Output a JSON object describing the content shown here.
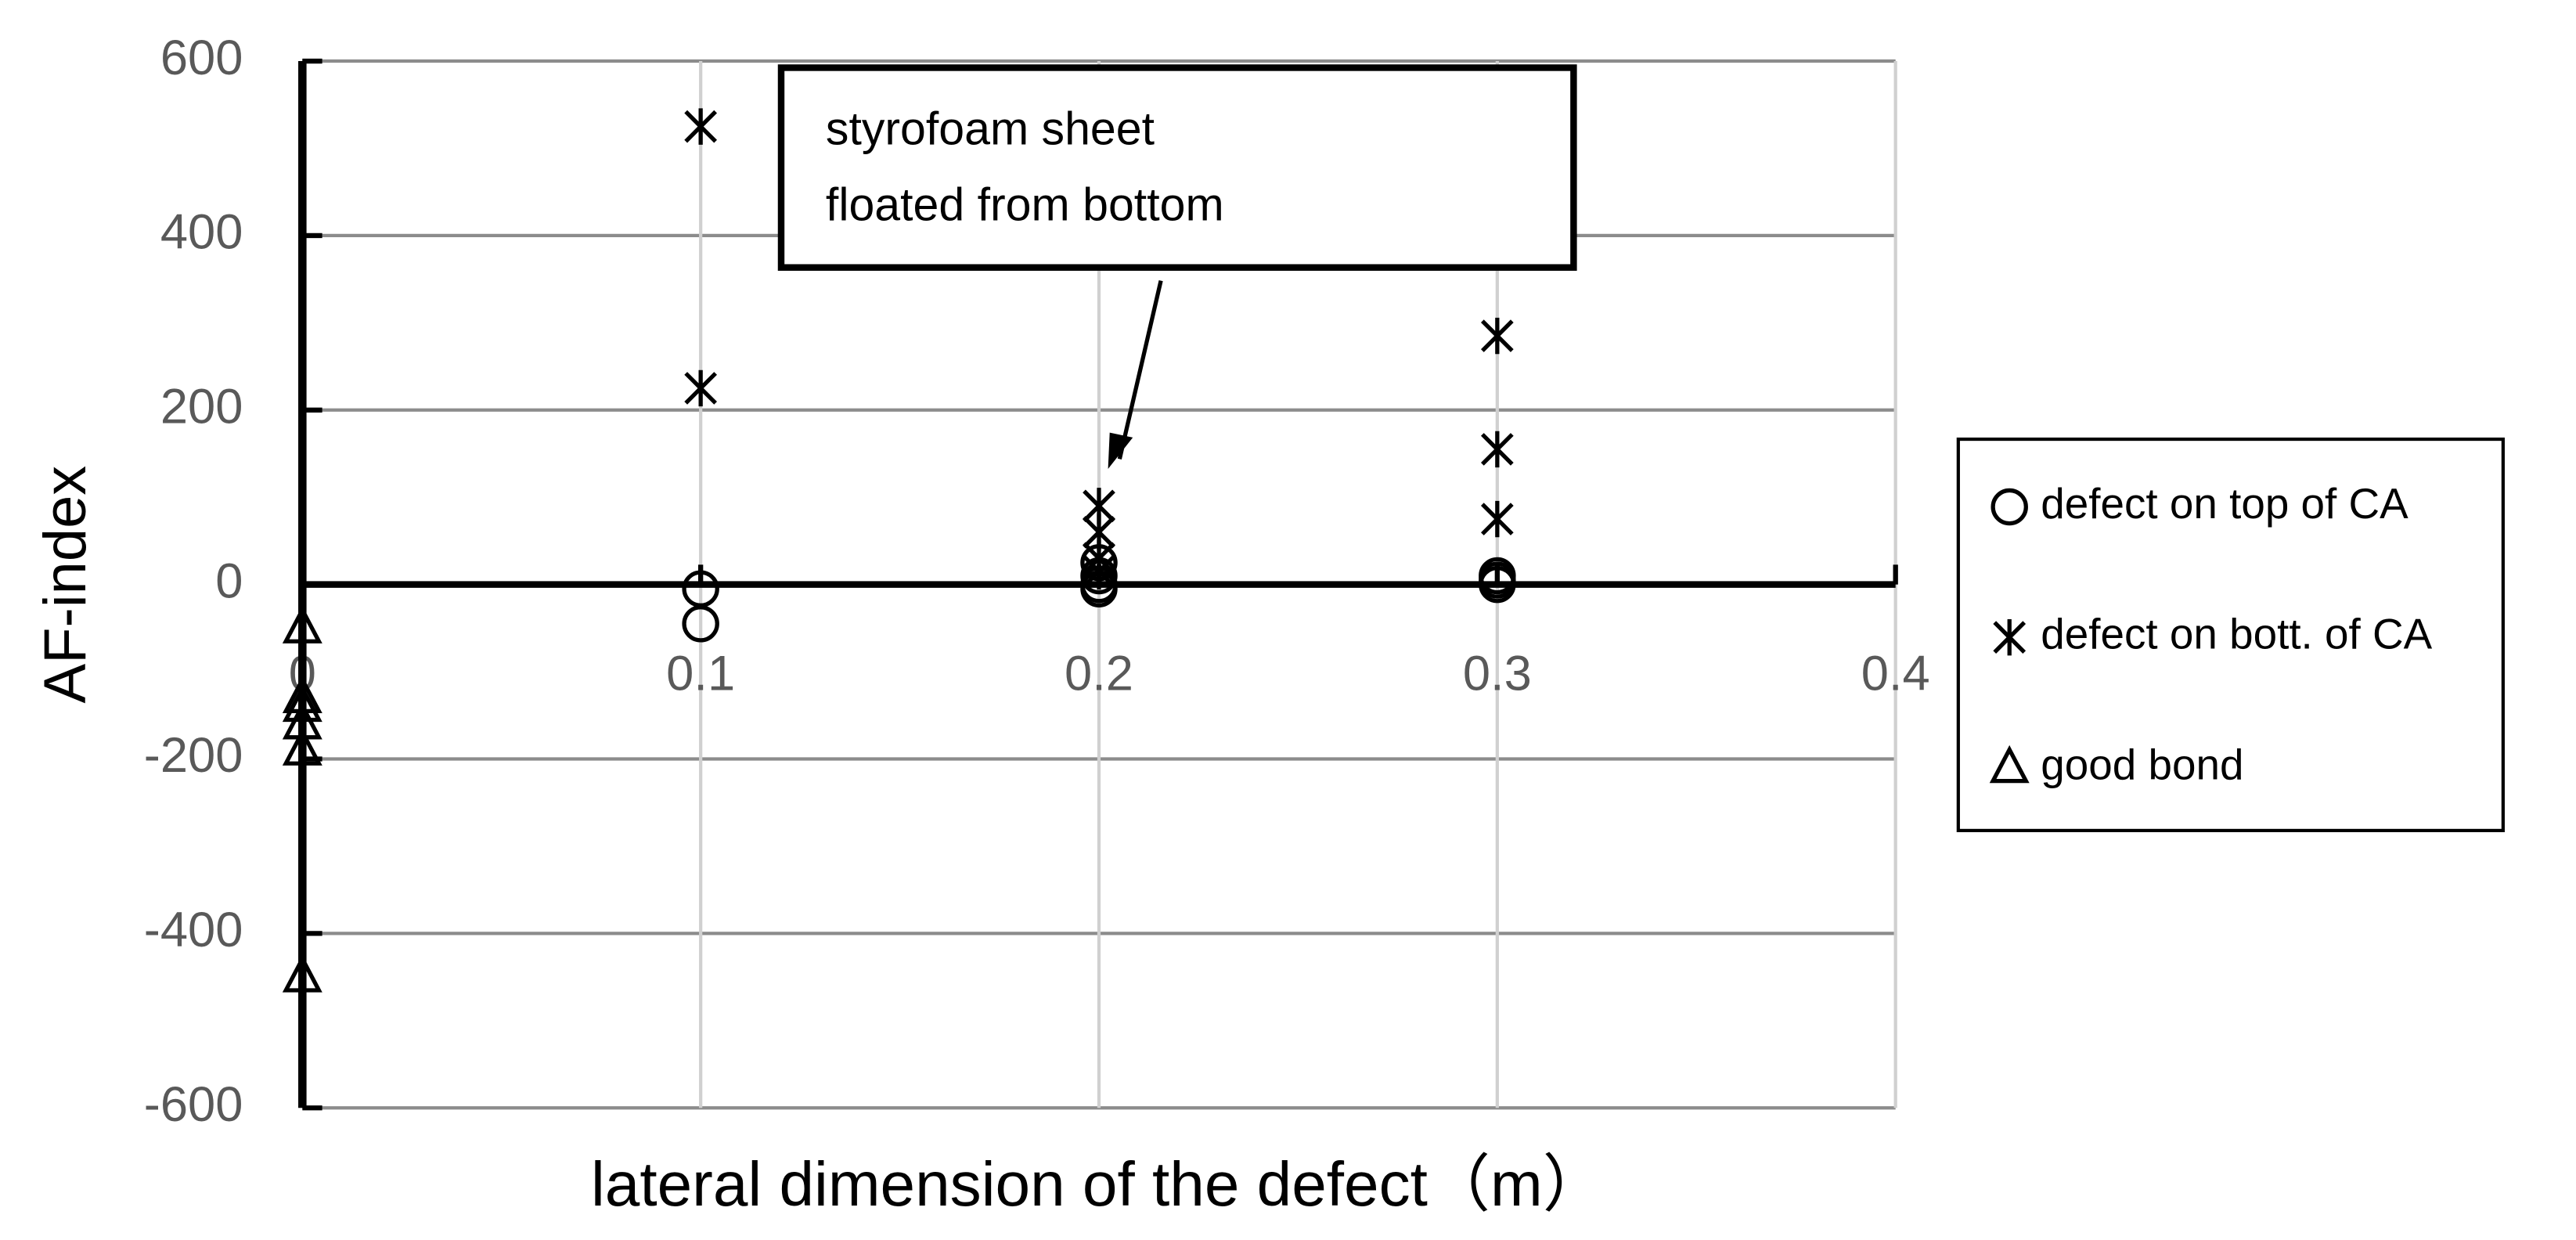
{
  "chart_data": {
    "type": "scatter",
    "x_label": "lateral dimension of the defect（m）",
    "y_label": "AF-index",
    "xlim": [
      0,
      0.4
    ],
    "ylim": [
      -600,
      600
    ],
    "xticks": [
      0,
      0.1,
      0.2,
      0.3,
      0.4
    ],
    "yticks": [
      -600,
      -400,
      -200,
      0,
      200,
      400,
      600
    ],
    "grid": true,
    "legend": "right",
    "annotation": [
      "styrofoam sheet",
      "floated from bottom"
    ],
    "series": [
      {
        "name": "defect on top of CA",
        "marker": "circle",
        "color": "#000000",
        "x": [
          0.1,
          0.1,
          0.2,
          0.2,
          0.2,
          0.2,
          0.3,
          0.3,
          0.3
        ],
        "values": [
          -5,
          -45,
          25,
          10,
          0,
          -5,
          10,
          5,
          0
        ]
      },
      {
        "name": "defect on bott. of CA",
        "marker": "star",
        "color": "#000000",
        "x": [
          0.1,
          0.1,
          0.2,
          0.2,
          0.2,
          0.2,
          0.3,
          0.3,
          0.3
        ],
        "values": [
          525,
          225,
          90,
          60,
          30,
          15,
          285,
          155,
          75
        ]
      },
      {
        "name": "good bond",
        "marker": "triangle",
        "color": "#000000",
        "x": [
          0,
          0,
          0,
          0,
          0,
          0
        ],
        "values": [
          -50,
          -130,
          -140,
          -160,
          -190,
          -450
        ]
      }
    ]
  }
}
